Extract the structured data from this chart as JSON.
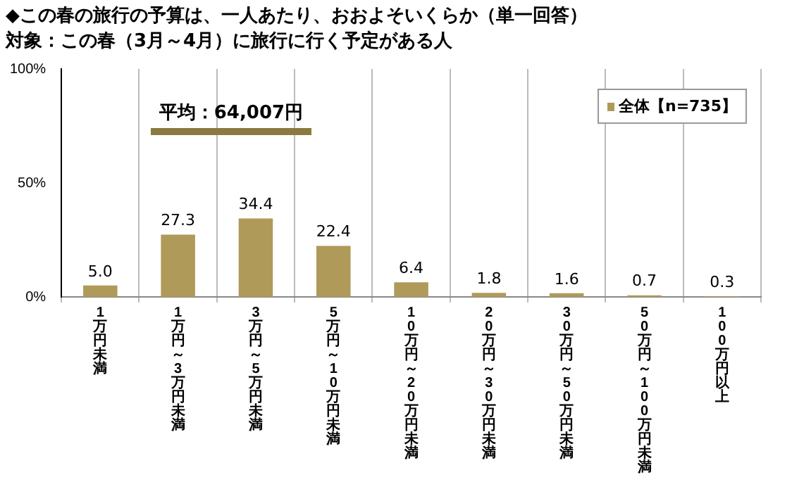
{
  "chart_data": {
    "type": "bar",
    "title": "◆この春の旅行の予算は、一人あたり、おおよそいくらか（単一回答）",
    "subtitle": "対象：この春（3月～4月）に旅行に行く予定がある人",
    "categories": [
      "1万円未満",
      "1万円～3万円未満",
      "3万円～5万円未満",
      "5万円～10万円未満",
      "10万円～20万円未満",
      "20万円～30万円未満",
      "30万円～50万円未満",
      "50万円～100万円未満",
      "100万円以上"
    ],
    "series": [
      {
        "name": "全体【n=735】",
        "color": "#b09a5a",
        "values": [
          5.0,
          27.3,
          34.4,
          22.4,
          6.4,
          1.8,
          1.6,
          0.7,
          0.3
        ],
        "value_labels": [
          "5.0",
          "27.3",
          "34.4",
          "22.4",
          "6.4",
          "1.8",
          "1.6",
          "0.7",
          "0.3"
        ]
      }
    ],
    "ylim": [
      0,
      100
    ],
    "yticks": [
      {
        "value": 0,
        "label": "0%"
      },
      {
        "value": 50,
        "label": "50%"
      },
      {
        "value": 100,
        "label": "100%"
      }
    ],
    "annotations": [
      "平均：64,007円"
    ],
    "grid": "x",
    "legend": "top right"
  }
}
